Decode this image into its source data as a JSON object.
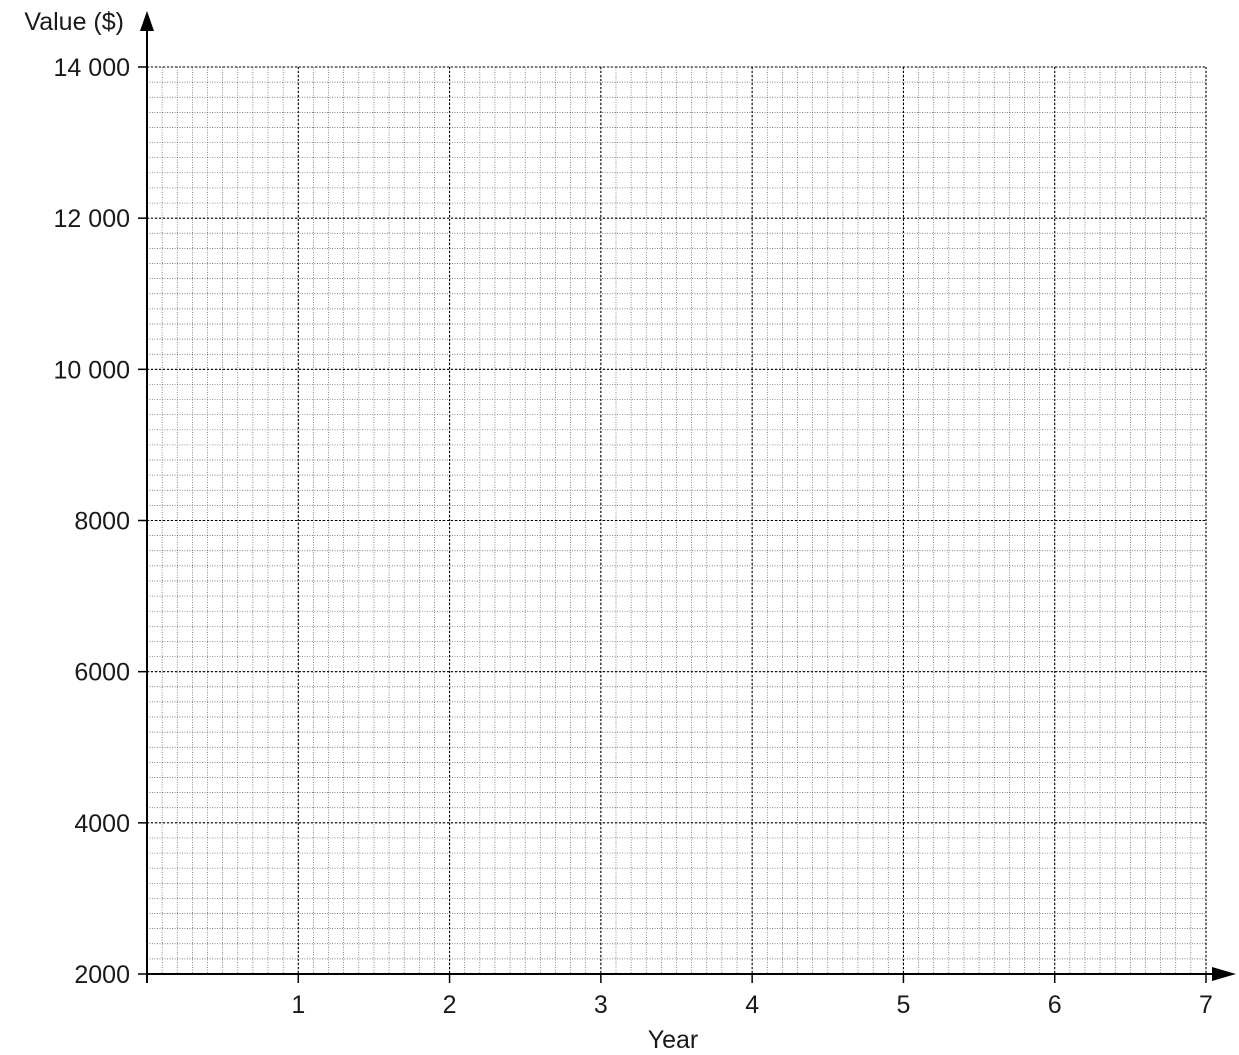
{
  "chart_data": {
    "type": "scatter",
    "title": "",
    "xlabel": "Year",
    "ylabel": "Value ($)",
    "xlim": [
      0,
      7
    ],
    "ylim": [
      2000,
      14000
    ],
    "x_ticks": [
      1,
      2,
      3,
      4,
      5,
      6,
      7
    ],
    "x_tick_labels": [
      "1",
      "2",
      "3",
      "4",
      "5",
      "6",
      "7"
    ],
    "y_ticks": [
      2000,
      4000,
      6000,
      8000,
      10000,
      12000,
      14000
    ],
    "y_tick_labels": [
      "2000",
      "4000",
      "6000",
      "8000",
      "10 000",
      "12 000",
      "14 000"
    ],
    "grid": true,
    "minor_grid_per_major": 10,
    "series": []
  }
}
